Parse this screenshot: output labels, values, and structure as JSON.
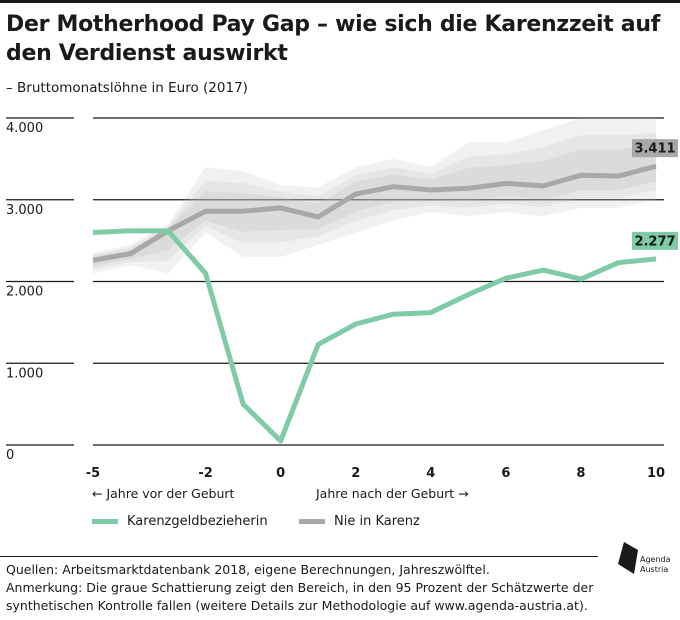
{
  "title": "Der Motherhood Pay Gap – wie sich die Karenzzeit auf den Verdienst auswirkt",
  "subtitle": "– Bruttomonatslöhne in Euro (2017)",
  "chart_data": {
    "type": "line",
    "y_ticks": [
      "4.000",
      "3.000",
      "2.000",
      "1.000",
      "0"
    ],
    "y_tick_values": [
      4000,
      3000,
      2000,
      1000,
      0
    ],
    "ylim": [
      0,
      4000
    ],
    "x_ticks": [
      "-5",
      "-2",
      "0",
      "2",
      "4",
      "6",
      "8",
      "10"
    ],
    "x_tick_values": [
      -5,
      -2,
      0,
      2,
      4,
      6,
      8,
      10
    ],
    "xlim": [
      -5,
      10
    ],
    "x_note_left": "← Jahre vor der Geburt",
    "x_note_right": "Jahre nach der Geburt →",
    "grid": true,
    "x": [
      -5,
      -4,
      -3,
      -2,
      -1,
      0,
      1,
      2,
      3,
      4,
      5,
      6,
      7,
      8,
      9,
      10
    ],
    "series": [
      {
        "name": "Karenzgeldbezieherin",
        "color": "#7fcba8",
        "values": [
          2600,
          2620,
          2620,
          2100,
          500,
          50,
          1230,
          1480,
          1600,
          1620,
          1840,
          2040,
          2140,
          2030,
          2230,
          2277
        ],
        "end_label": "2.277"
      },
      {
        "name": "Nie in Karenz",
        "color": "#a8a8a8",
        "values": [
          2260,
          2340,
          2620,
          2860,
          2860,
          2900,
          2790,
          3070,
          3160,
          3120,
          3140,
          3200,
          3170,
          3300,
          3290,
          3411
        ],
        "end_label": "3.411",
        "band_upper": [
          2350,
          2450,
          2700,
          3400,
          3350,
          3180,
          3150,
          3400,
          3500,
          3400,
          3700,
          3700,
          3850,
          4000,
          4000,
          4000
        ],
        "band_lower": [
          2100,
          2200,
          2100,
          2600,
          2300,
          2300,
          2450,
          2600,
          2750,
          2850,
          2800,
          2850,
          2800,
          2900,
          2900,
          3000
        ]
      }
    ]
  },
  "legend": {
    "items": [
      {
        "label": "Karenzgeldbezieherin",
        "color": "#7fcba8"
      },
      {
        "label": "Nie in Karenz",
        "color": "#a8a8a8"
      }
    ]
  },
  "sources": {
    "line1": "Quellen: Arbeitsmarktdatenbank 2018, eigene Berechnungen, Jahreszwölftel.",
    "line2": "Anmerkung: Die graue Schattierung zeigt den Bereich, in den 95 Prozent der Schätzwerte der",
    "line3": "synthetischen Kontrolle fallen (weitere Details zur Methodologie auf www.agenda-austria.at)."
  },
  "logo": {
    "line1": "Agenda",
    "line2": "Austria"
  }
}
